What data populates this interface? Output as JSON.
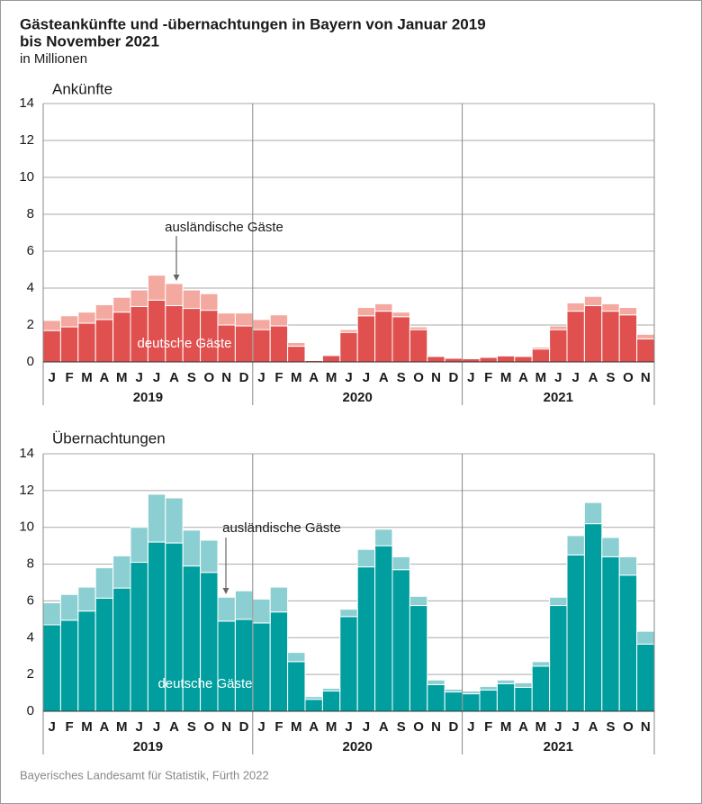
{
  "header": {
    "title": [
      "Gästeankünfte und -übernachtungen in Bayern von Januar 2019",
      "bis November 2021"
    ],
    "subtitle": "in Millionen"
  },
  "chart_data": [
    {
      "type": "bar",
      "stacked": true,
      "title": "Ankünfte",
      "categories": [
        "J",
        "F",
        "M",
        "A",
        "M",
        "J",
        "J",
        "A",
        "S",
        "O",
        "N",
        "D",
        "J",
        "F",
        "M",
        "A",
        "M",
        "J",
        "J",
        "A",
        "S",
        "O",
        "N",
        "D",
        "J",
        "F",
        "M",
        "A",
        "M",
        "J",
        "J",
        "A",
        "S",
        "O",
        "N"
      ],
      "years": [
        "2019",
        "2020",
        "2021"
      ],
      "series": [
        {
          "name": "deutsche Gäste",
          "color": "#e0504f",
          "values": [
            1.7,
            1.9,
            2.1,
            2.3,
            2.7,
            3.0,
            3.35,
            3.05,
            2.9,
            2.8,
            2.0,
            1.95,
            1.75,
            1.95,
            0.85,
            0.08,
            0.35,
            1.6,
            2.5,
            2.75,
            2.45,
            1.75,
            0.3,
            0.2,
            0.17,
            0.25,
            0.33,
            0.3,
            0.7,
            1.75,
            2.75,
            3.05,
            2.75,
            2.55,
            1.25
          ]
        },
        {
          "name": "ausländische Gäste",
          "color": "#f4a9a0",
          "values": [
            0.55,
            0.6,
            0.6,
            0.8,
            0.8,
            0.9,
            1.35,
            1.2,
            1.0,
            0.9,
            0.65,
            0.7,
            0.55,
            0.6,
            0.2,
            0.02,
            0.05,
            0.15,
            0.45,
            0.4,
            0.25,
            0.15,
            0.05,
            0.02,
            0.03,
            0.05,
            0.05,
            0.05,
            0.1,
            0.2,
            0.45,
            0.5,
            0.4,
            0.4,
            0.25
          ]
        }
      ],
      "ylim": [
        0,
        14
      ],
      "yticks": [
        0,
        2,
        4,
        6,
        8,
        10,
        12,
        14
      ],
      "grid": true
    },
    {
      "type": "bar",
      "stacked": true,
      "title": "Übernachtungen",
      "categories": [
        "J",
        "F",
        "M",
        "A",
        "M",
        "J",
        "J",
        "A",
        "S",
        "O",
        "N",
        "D",
        "J",
        "F",
        "M",
        "A",
        "M",
        "J",
        "J",
        "A",
        "S",
        "O",
        "N",
        "D",
        "J",
        "F",
        "M",
        "A",
        "M",
        "J",
        "J",
        "A",
        "S",
        "O",
        "N"
      ],
      "years": [
        "2019",
        "2020",
        "2021"
      ],
      "series": [
        {
          "name": "deutsche Gäste",
          "color": "#009e9f",
          "values": [
            4.7,
            4.95,
            5.45,
            6.15,
            6.7,
            8.1,
            9.2,
            9.15,
            7.9,
            7.55,
            4.9,
            5.0,
            4.8,
            5.4,
            2.7,
            0.65,
            1.1,
            5.15,
            7.85,
            9.0,
            7.7,
            5.75,
            1.45,
            1.05,
            0.95,
            1.15,
            1.5,
            1.3,
            2.45,
            5.75,
            8.5,
            10.2,
            8.4,
            7.4,
            3.65
          ]
        },
        {
          "name": "ausländische Gäste",
          "color": "#8ccfd3",
          "values": [
            1.2,
            1.4,
            1.3,
            1.65,
            1.75,
            1.9,
            2.6,
            2.45,
            1.95,
            1.75,
            1.3,
            1.55,
            1.3,
            1.35,
            0.5,
            0.15,
            0.15,
            0.4,
            0.95,
            0.9,
            0.7,
            0.5,
            0.25,
            0.15,
            0.15,
            0.2,
            0.2,
            0.25,
            0.25,
            0.45,
            1.05,
            1.15,
            1.05,
            1.0,
            0.7
          ]
        }
      ],
      "ylim": [
        0,
        14
      ],
      "yticks": [
        0,
        2,
        4,
        6,
        8,
        10,
        12,
        14
      ],
      "grid": true
    }
  ],
  "source": "Bayerisches Landesamt für Statistik, Fürth 2022"
}
